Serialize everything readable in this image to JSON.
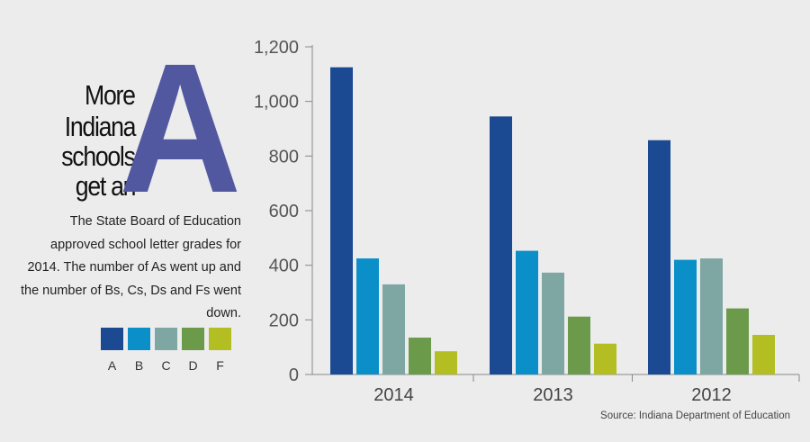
{
  "headline": {
    "lines": [
      "More",
      "Indiana",
      "schools",
      "get an"
    ],
    "big_letter": "A"
  },
  "description": "The State Board of Education approved school letter grades for 2014. The number of As went up and the number of Bs, Cs, Ds and Fs went down.",
  "source": "Source: Indiana Department of Education",
  "colors": {
    "A": "#1b4a93",
    "B": "#0a8fc8",
    "C": "#7ea6a2",
    "D": "#6a9a4a",
    "F": "#b2be22",
    "headline_letter": "#5158a0",
    "axis": "#888888",
    "background": "#ececed"
  },
  "chart_data": {
    "type": "bar",
    "categories": [
      "2014",
      "2013",
      "2012"
    ],
    "series": [
      {
        "name": "A",
        "values": [
          1125,
          945,
          858
        ]
      },
      {
        "name": "B",
        "values": [
          425,
          453,
          420
        ]
      },
      {
        "name": "C",
        "values": [
          330,
          373,
          425
        ]
      },
      {
        "name": "D",
        "values": [
          135,
          212,
          242
        ]
      },
      {
        "name": "F",
        "values": [
          85,
          113,
          145
        ]
      }
    ],
    "title": "",
    "xlabel": "",
    "ylabel": "",
    "ylim": [
      0,
      1200
    ],
    "yticks": [
      "0",
      "200",
      "400",
      "600",
      "800",
      "1,000",
      "1,200"
    ],
    "grid": false,
    "legend": "left"
  }
}
